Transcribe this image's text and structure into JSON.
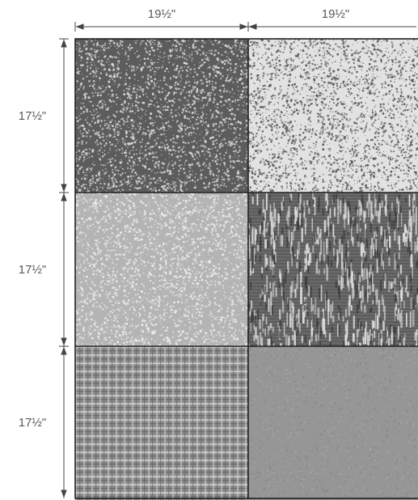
{
  "dimensions": {
    "top": [
      "19½\"",
      "19½\""
    ],
    "left": [
      "17½\"",
      "17½\"",
      "17½\""
    ]
  },
  "layout_grid": {
    "rows": 3,
    "columns": 2
  },
  "swatches": [
    {
      "name": "swatch-dark-speckle",
      "pattern": "speckle",
      "base": "#5c5c5c",
      "dot": "#d8d8d8"
    },
    {
      "name": "swatch-light-speckle",
      "pattern": "speckle",
      "base": "#e2e2e2",
      "dot": "#5a5a5a"
    },
    {
      "name": "swatch-light-gray-speckle",
      "pattern": "speckle",
      "base": "#b4b4b4",
      "dot": "#ececec"
    },
    {
      "name": "swatch-woven-texture",
      "pattern": "woven",
      "base": "#6a6a6a",
      "dot": "#dcdcdc"
    },
    {
      "name": "swatch-grid-weave",
      "pattern": "grid",
      "base": "#8a8a8a",
      "dot": "#d2d2d2"
    },
    {
      "name": "swatch-medium-gray-plain",
      "pattern": "fine",
      "base": "#969696",
      "dot": "#aaaaaa"
    }
  ]
}
